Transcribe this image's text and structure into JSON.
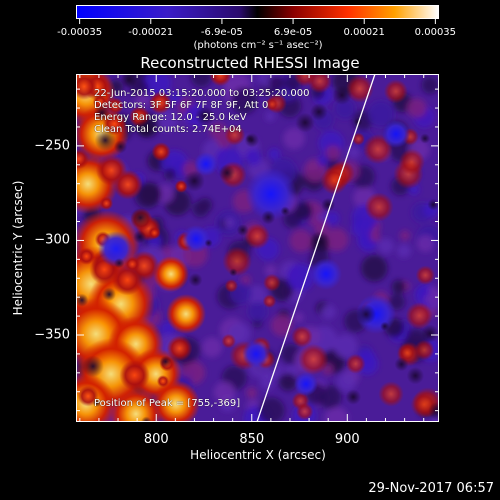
{
  "colorbar": {
    "tick_labels": [
      "-0.00035",
      "-0.00021",
      "-6.9e-05",
      "6.9e-05",
      "0.00021",
      "0.00035"
    ],
    "units": "(photons cm⁻² s⁻¹ asec⁻²)",
    "range": [
      -0.00035,
      0.00035
    ]
  },
  "plot": {
    "title": "Reconstructed RHESSI Image",
    "xlabel": "Heliocentric X (arcsec)",
    "ylabel": "Heliocentric Y (arcsec)",
    "xlim": [
      758,
      948
    ],
    "ylim": [
      -396,
      -212
    ],
    "x_ticks": [
      {
        "value": 800,
        "label": "800"
      },
      {
        "value": 850,
        "label": "850"
      },
      {
        "value": 900,
        "label": "900"
      }
    ],
    "y_ticks": [
      {
        "value": -250,
        "label": "−250"
      },
      {
        "value": -300,
        "label": "−300"
      },
      {
        "value": -350,
        "label": "−350"
      }
    ],
    "annotations": {
      "time": "22-Jun-2015 03:15:20.000 to 03:25:20.000",
      "detectors": "Detectors: 3F 5F 6F 7F 8F 9F, Att 0",
      "energy": "Energy Range: 12.0 - 25.0 keV",
      "clean": "Clean     Total counts: 2.74E+04",
      "peak": "Position of Peak = [755,-369]"
    }
  },
  "timestamp": "29-Nov-2017 06:57",
  "colors": {
    "background": "#000000",
    "frame": "#ffffff",
    "limb_line": "#ffffff"
  }
}
